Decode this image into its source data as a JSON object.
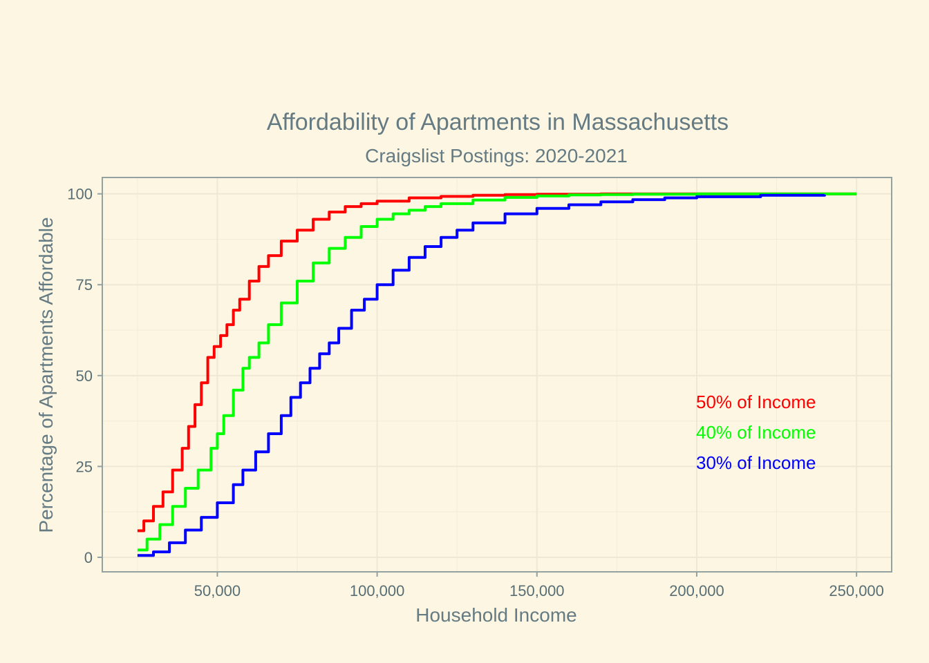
{
  "chart_data": {
    "type": "line",
    "title": "Affordability of Apartments in Massachusetts",
    "subtitle": "Craigslist Postings: 2020-2021",
    "xlabel": "Household Income",
    "ylabel": "Percentage of Apartments Affordable",
    "xlim": [
      14000,
      261000
    ],
    "ylim": [
      -4,
      104.5
    ],
    "x_ticks": [
      50000,
      100000,
      150000,
      200000,
      250000
    ],
    "x_tick_labels": [
      "50,000",
      "100,000",
      "150,000",
      "200,000",
      "250,000"
    ],
    "y_ticks": [
      0,
      25,
      50,
      75,
      100
    ],
    "y_tick_labels": [
      "0",
      "25",
      "50",
      "75",
      "100"
    ],
    "grid": true,
    "legend_placement": "inside-bottom-right",
    "series": [
      {
        "name": "50% of Income",
        "color": "#ff0000",
        "x": [
          25000,
          27000,
          30000,
          33000,
          36000,
          39000,
          41000,
          43000,
          45000,
          47000,
          49000,
          51000,
          53000,
          55000,
          57000,
          60000,
          63000,
          66000,
          70000,
          75000,
          80000,
          85000,
          90000,
          95000,
          100000,
          110000,
          120000,
          130000,
          140000,
          150000,
          170000,
          200000,
          250000
        ],
        "y": [
          7.3,
          10,
          14,
          18,
          24,
          30,
          36,
          42,
          48,
          55,
          58,
          61,
          64,
          68,
          71,
          76,
          80,
          83,
          87,
          90,
          93,
          95,
          96.5,
          97.3,
          98,
          98.9,
          99.3,
          99.6,
          99.8,
          99.9,
          100,
          100,
          100
        ]
      },
      {
        "name": "40% of Income",
        "color": "#00ff00",
        "x": [
          25000,
          28000,
          32000,
          36000,
          40000,
          44000,
          48000,
          50000,
          52000,
          55000,
          58000,
          60000,
          63000,
          66000,
          70000,
          75000,
          80000,
          85000,
          90000,
          95000,
          100000,
          105000,
          110000,
          115000,
          120000,
          130000,
          140000,
          150000,
          160000,
          170000,
          180000,
          200000,
          250000
        ],
        "y": [
          2,
          5,
          9,
          14,
          19,
          24,
          30,
          34,
          39,
          46,
          52,
          55,
          59,
          64,
          70,
          76,
          81,
          85,
          88,
          91,
          93,
          94.5,
          95.5,
          96.5,
          97.3,
          98.3,
          99,
          99.4,
          99.7,
          99.8,
          99.9,
          100,
          100
        ]
      },
      {
        "name": "30% of Income",
        "color": "#0000ff",
        "x": [
          25000,
          30000,
          35000,
          40000,
          45000,
          50000,
          55000,
          58000,
          62000,
          66000,
          70000,
          73000,
          76000,
          79000,
          82000,
          85000,
          88000,
          92000,
          96000,
          100000,
          105000,
          110000,
          115000,
          120000,
          125000,
          130000,
          140000,
          150000,
          160000,
          170000,
          180000,
          190000,
          200000,
          220000,
          240000
        ],
        "y": [
          0.5,
          1.5,
          4,
          7.5,
          11,
          15,
          20,
          24,
          29,
          34,
          39,
          44,
          48,
          52,
          56,
          59,
          63,
          68,
          71,
          75,
          79,
          82.5,
          85.5,
          88,
          90,
          92,
          94.5,
          96,
          97,
          97.8,
          98.4,
          98.9,
          99.2,
          99.6,
          99.8
        ]
      }
    ]
  }
}
